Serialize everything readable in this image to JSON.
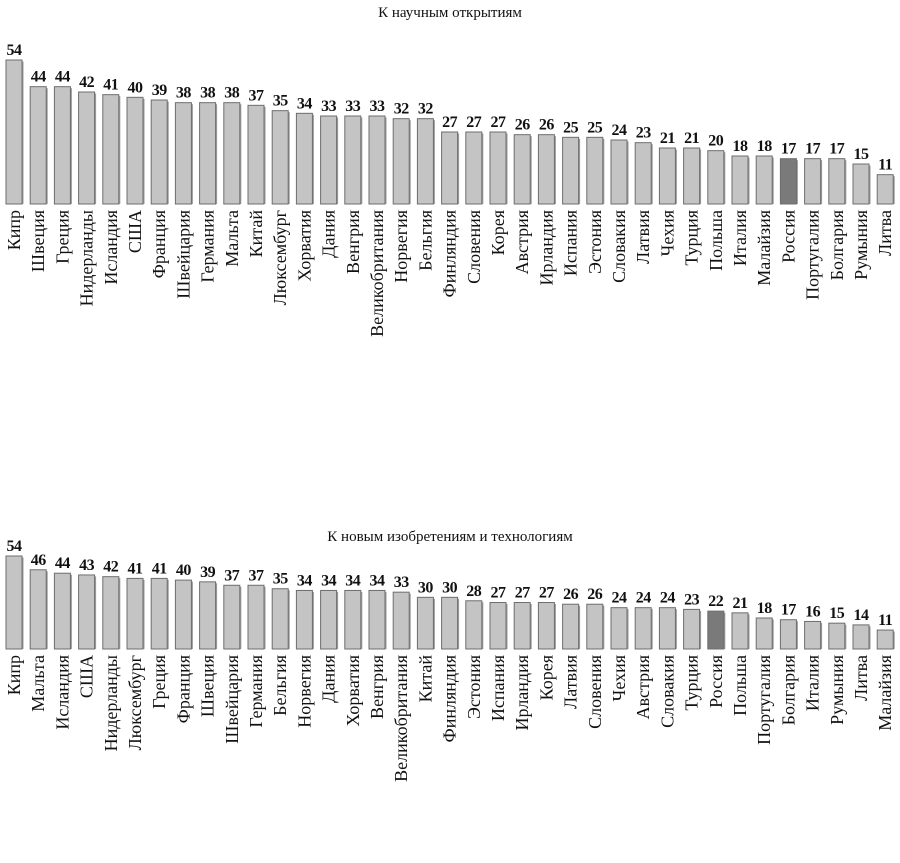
{
  "chart_data": [
    {
      "type": "bar",
      "title": "К научным открытиям",
      "xlabel": "",
      "ylabel": "",
      "ylim": [
        0,
        54
      ],
      "grid": false,
      "highlight": "Россия",
      "categories": [
        "Кипр",
        "Швеция",
        "Греция",
        "Нидерланды",
        "Исландия",
        "США",
        "Франция",
        "Швейцария",
        "Германия",
        "Мальта",
        "Китай",
        "Люксембург",
        "Хорватия",
        "Дания",
        "Венгрия",
        "Великобритания",
        "Норвегия",
        "Бельгия",
        "Финляндия",
        "Словения",
        "Корея",
        "Австрия",
        "Ирландия",
        "Испания",
        "Эстония",
        "Словакия",
        "Латвия",
        "Чехия",
        "Турция",
        "Польша",
        "Италия",
        "Малайзия",
        "Россия",
        "Португалия",
        "Болгария",
        "Румыния",
        "Литва"
      ],
      "values": [
        54,
        44,
        44,
        42,
        41,
        40,
        39,
        38,
        38,
        38,
        37,
        35,
        34,
        33,
        33,
        33,
        32,
        32,
        27,
        27,
        27,
        26,
        26,
        25,
        25,
        24,
        23,
        21,
        21,
        20,
        18,
        18,
        17,
        17,
        17,
        15,
        11
      ]
    },
    {
      "type": "bar",
      "title": "К новым изобретениям и технологиям",
      "xlabel": "",
      "ylabel": "",
      "ylim": [
        0,
        54
      ],
      "grid": false,
      "highlight": "Россия",
      "categories": [
        "Кипр",
        "Мальта",
        "Исландия",
        "США",
        "Нидерланды",
        "Люксембург",
        "Греция",
        "Франция",
        "Швеция",
        "Швейцария",
        "Германия",
        "Бельгия",
        "Норвегия",
        "Дания",
        "Хорватия",
        "Венгрия",
        "Великобритания",
        "Китай",
        "Финляндия",
        "Эстония",
        "Испания",
        "Ирландия",
        "Корея",
        "Латвия",
        "Словения",
        "Чехия",
        "Австрия",
        "Словакия",
        "Турция",
        "Россия",
        "Польша",
        "Португалия",
        "Болгария",
        "Италия",
        "Румыния",
        "Литва",
        "Малайзия"
      ],
      "values": [
        54,
        46,
        44,
        43,
        42,
        41,
        41,
        40,
        39,
        37,
        37,
        35,
        34,
        34,
        34,
        34,
        33,
        30,
        30,
        28,
        27,
        27,
        27,
        26,
        26,
        24,
        24,
        24,
        23,
        22,
        21,
        18,
        17,
        16,
        15,
        14,
        11
      ]
    }
  ],
  "colors": {
    "bar": "#c4c4c4",
    "bar_edge": "#6e6e6e",
    "highlight": "#7a7a7a"
  }
}
